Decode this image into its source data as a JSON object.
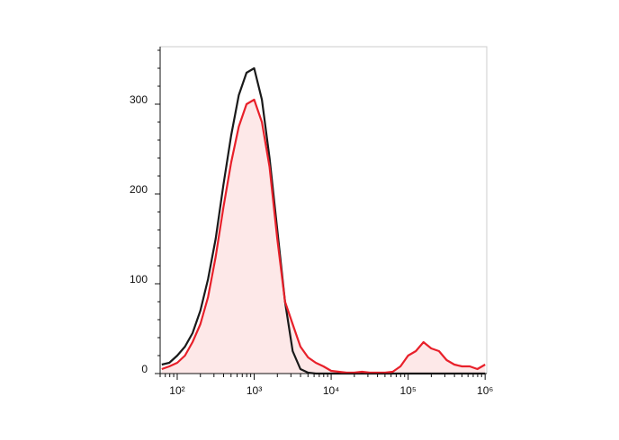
{
  "chart_data": {
    "type": "line",
    "log_x": true,
    "x": [
      63,
      79,
      100,
      126,
      158,
      200,
      251,
      316,
      398,
      501,
      631,
      794,
      1000,
      1259,
      1585,
      1995,
      2512,
      3162,
      3981,
      5012,
      6310,
      7943,
      10000,
      12589,
      15849,
      19953,
      25119,
      31623,
      39811,
      50119,
      63096,
      79433,
      100000,
      125893,
      158489,
      199526,
      251189,
      316228,
      398107,
      501187,
      630957,
      794328,
      1000000
    ],
    "series": [
      {
        "color": "#1a1a1a",
        "fill": null,
        "values": [
          10,
          12,
          20,
          30,
          45,
          70,
          105,
          150,
          210,
          265,
          310,
          335,
          340,
          305,
          240,
          160,
          80,
          25,
          5,
          1,
          0,
          0,
          0,
          0,
          0,
          0,
          0,
          0,
          0,
          0,
          0,
          0,
          0,
          0,
          0,
          0,
          0,
          0,
          0,
          0,
          0,
          0,
          0
        ]
      },
      {
        "color": "#e8202a",
        "fill": "#fde8e8",
        "values": [
          5,
          8,
          12,
          20,
          35,
          55,
          85,
          130,
          185,
          235,
          275,
          300,
          305,
          280,
          230,
          150,
          80,
          55,
          30,
          18,
          12,
          8,
          3,
          2,
          1,
          1,
          2,
          1,
          1,
          1,
          2,
          8,
          20,
          25,
          35,
          28,
          25,
          15,
          10,
          8,
          8,
          5,
          10
        ]
      }
    ],
    "xlim": [
      60,
      1050000
    ],
    "xticks": [
      {
        "value": 100,
        "label": "10²"
      },
      {
        "value": 1000,
        "label": "10³"
      },
      {
        "value": 10000,
        "label": "10⁴"
      },
      {
        "value": 100000,
        "label": "10⁵"
      },
      {
        "value": 1000000,
        "label": "10⁶"
      }
    ],
    "ylim": [
      0,
      364
    ],
    "yticks": [
      0,
      100,
      200,
      300
    ]
  }
}
